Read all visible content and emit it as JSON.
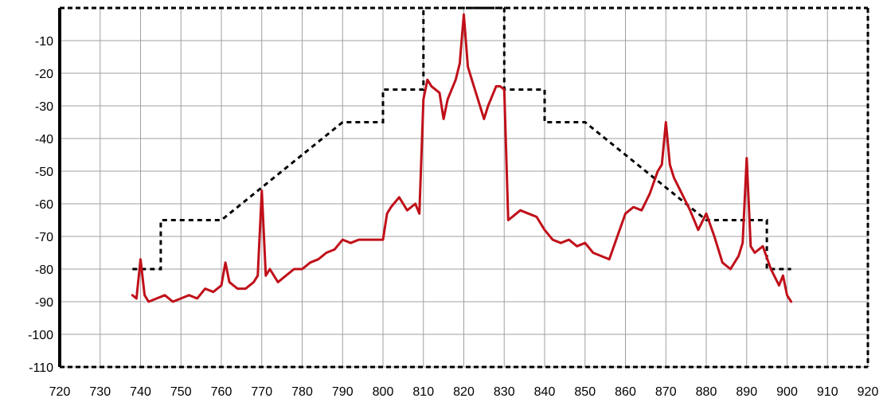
{
  "chart_data": {
    "type": "line",
    "title": "",
    "xlabel": "",
    "ylabel": "",
    "xlim": [
      720,
      920
    ],
    "ylim": [
      -110,
      0
    ],
    "grid": true,
    "x_ticks": [
      720,
      730,
      740,
      750,
      760,
      770,
      780,
      790,
      800,
      810,
      820,
      830,
      840,
      850,
      860,
      870,
      880,
      890,
      900,
      910,
      920
    ],
    "y_ticks": [
      -10,
      -20,
      -30,
      -40,
      -50,
      -60,
      -70,
      -80,
      -90,
      -100,
      -110
    ],
    "colors": {
      "spectrum": "#c0101a",
      "mask": "#000000",
      "grid": "#a0a0a0"
    },
    "series": [
      {
        "style": "dashed-black",
        "x": [
          738,
          745,
          745,
          760,
          770,
          780,
          790,
          800,
          800,
          810,
          810,
          830,
          830,
          840,
          840,
          850,
          860,
          870,
          880,
          890,
          895,
          895,
          901
        ],
        "y": [
          -80,
          -80,
          -65,
          -65,
          -55,
          -45,
          -35,
          -35,
          -25,
          -25,
          0,
          0,
          -25,
          -25,
          -35,
          -35,
          -45,
          -55,
          -65,
          -65,
          -65,
          -80,
          -80
        ]
      },
      {
        "style": "solid-red",
        "x": [
          738,
          739,
          740,
          741,
          742,
          744,
          746,
          748,
          750,
          752,
          754,
          756,
          758,
          760,
          761,
          762,
          764,
          766,
          768,
          769,
          770,
          771,
          772,
          774,
          776,
          778,
          780,
          782,
          784,
          786,
          788,
          790,
          792,
          794,
          796,
          798,
          800,
          801,
          802,
          804,
          806,
          808,
          809,
          810,
          811,
          812,
          814,
          815,
          816,
          818,
          819,
          820,
          821,
          822,
          824,
          825,
          826,
          828,
          829,
          830,
          831,
          832,
          834,
          836,
          838,
          840,
          842,
          844,
          846,
          848,
          850,
          852,
          854,
          856,
          858,
          860,
          862,
          864,
          866,
          868,
          869,
          870,
          871,
          872,
          874,
          876,
          878,
          880,
          882,
          884,
          886,
          888,
          889,
          890,
          891,
          892,
          894,
          896,
          898,
          899,
          900,
          901
        ],
        "y": [
          -88,
          -89,
          -77,
          -88,
          -90,
          -89,
          -88,
          -90,
          -89,
          -88,
          -89,
          -86,
          -87,
          -85,
          -78,
          -84,
          -86,
          -86,
          -84,
          -82,
          -56,
          -82,
          -80,
          -84,
          -82,
          -80,
          -80,
          -78,
          -77,
          -75,
          -74,
          -71,
          -72,
          -71,
          -71,
          -71,
          -71,
          -63,
          -61,
          -58,
          -62,
          -60,
          -63,
          -28,
          -22,
          -24,
          -26,
          -34,
          -28,
          -22,
          -17,
          -2,
          -18,
          -22,
          -30,
          -34,
          -30,
          -24,
          -24,
          -25,
          -65,
          -64,
          -62,
          -63,
          -64,
          -68,
          -71,
          -72,
          -71,
          -73,
          -72,
          -75,
          -76,
          -77,
          -70,
          -63,
          -61,
          -62,
          -57,
          -50,
          -48,
          -35,
          -48,
          -52,
          -57,
          -62,
          -68,
          -63,
          -70,
          -78,
          -80,
          -76,
          -72,
          -46,
          -73,
          -75,
          -73,
          -80,
          -85,
          -82,
          -88,
          -90
        ]
      }
    ]
  }
}
